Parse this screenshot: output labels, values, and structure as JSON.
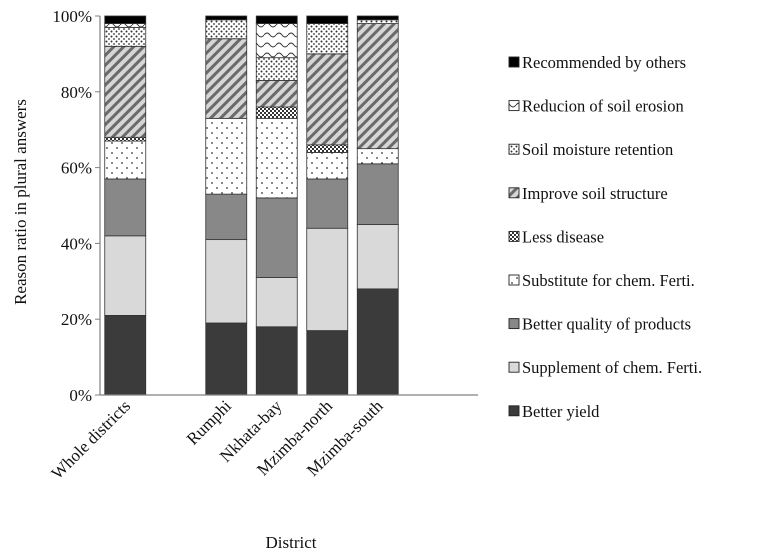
{
  "chart_data": {
    "type": "bar",
    "stacked": true,
    "normalized": true,
    "title": "",
    "xlabel": "District",
    "ylabel": "Reason ratio in plural answers",
    "ylim": [
      0,
      100
    ],
    "y_ticks": [
      "0%",
      "20%",
      "40%",
      "60%",
      "80%",
      "100%"
    ],
    "categories": [
      "Whole districts",
      "Rumphi",
      "Nkhata-bay",
      "Mzimba-north",
      "Mzimba-south"
    ],
    "category_slots": [
      0,
      2,
      3,
      4,
      5
    ],
    "grid": false,
    "legend_position": "right",
    "series": [
      {
        "name": "Better yield",
        "values": [
          21,
          19,
          18,
          17,
          28
        ],
        "pattern": "solid-dark",
        "color": "#3b3b3b"
      },
      {
        "name": "Supplement of chem. Ferti.",
        "values": [
          21,
          22,
          13,
          27,
          17
        ],
        "pattern": "solid-light",
        "color": "#d9d9d9"
      },
      {
        "name": "Better quality of products",
        "values": [
          15,
          12,
          21,
          13,
          16
        ],
        "pattern": "solid-mid",
        "color": "#888888"
      },
      {
        "name": "Substitute for chem. Ferti.",
        "values": [
          10,
          20,
          21,
          7,
          4
        ],
        "pattern": "sparse-dots",
        "color": "#ffffff"
      },
      {
        "name": "Less disease",
        "values": [
          1,
          0,
          3,
          2,
          0
        ],
        "pattern": "checker",
        "color": "#bbbbbb"
      },
      {
        "name": "Improve soil structure",
        "values": [
          24,
          21,
          7,
          24,
          33
        ],
        "pattern": "diagonal-hatch",
        "color": "#cccccc"
      },
      {
        "name": "Soil moisture retention",
        "values": [
          5,
          5,
          6,
          8,
          1
        ],
        "pattern": "dense-dots",
        "color": "#ffffff"
      },
      {
        "name": "Reducion of soil erosion",
        "values": [
          1,
          0,
          9,
          0,
          0
        ],
        "pattern": "wave",
        "color": "#ffffff"
      },
      {
        "name": "Recommended by others",
        "values": [
          2,
          1,
          2,
          2,
          1
        ],
        "pattern": "solid-black",
        "color": "#000000"
      }
    ],
    "legend_order": [
      "Recommended by others",
      "Reducion of soil erosion",
      "Soil moisture retention",
      "Improve soil structure",
      "Less disease",
      "Substitute for chem. Ferti.",
      "Better quality of products",
      "Supplement of chem. Ferti.",
      "Better yield"
    ]
  }
}
